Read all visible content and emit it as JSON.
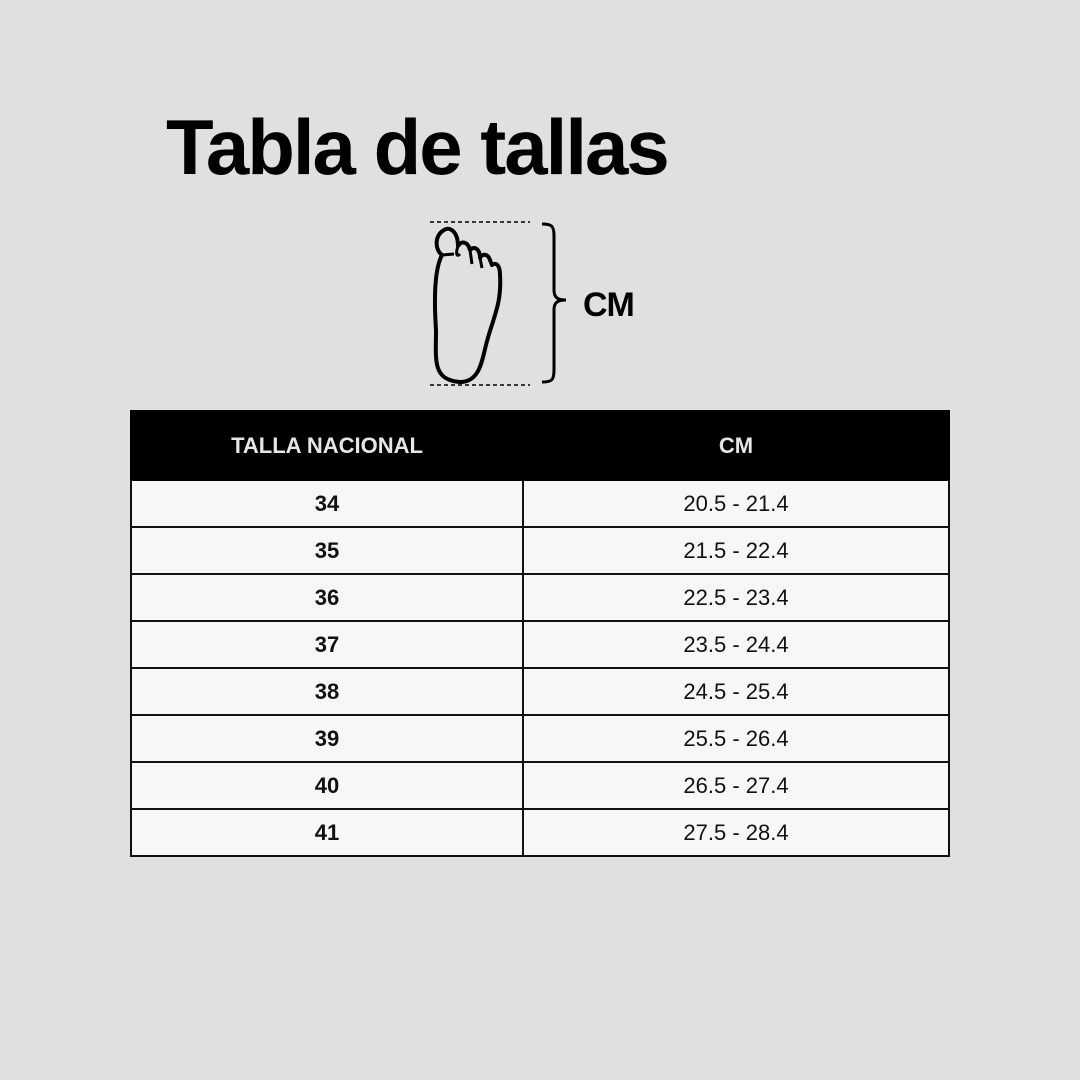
{
  "title": "Tabla de tallas",
  "diagram": {
    "icon": "foot-icon",
    "measure_label": "CM"
  },
  "table": {
    "headers": [
      "TALLA NACIONAL",
      "CM"
    ],
    "rows": [
      {
        "size": "34",
        "cm": "20.5 - 21.4"
      },
      {
        "size": "35",
        "cm": "21.5 - 22.4"
      },
      {
        "size": "36",
        "cm": "22.5 - 23.4"
      },
      {
        "size": "37",
        "cm": "23.5 - 24.4"
      },
      {
        "size": "38",
        "cm": "24.5 - 25.4"
      },
      {
        "size": "39",
        "cm": "25.5 - 26.4"
      },
      {
        "size": "40",
        "cm": "26.5 - 27.4"
      },
      {
        "size": "41",
        "cm": "27.5 - 28.4"
      }
    ]
  },
  "colors": {
    "background": "#e0e0e0",
    "header": "#000000",
    "cell": "#f8f6f7"
  }
}
